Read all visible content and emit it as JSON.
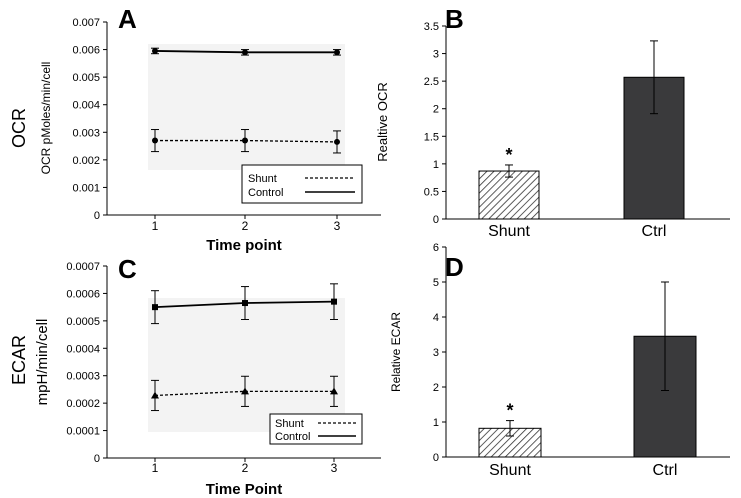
{
  "row_labels": [
    "OCR",
    "ECAR"
  ],
  "chart_data": [
    {
      "panel": "A",
      "type": "line",
      "xlabel": "Time point",
      "ylabel": "OCR pMoles/min/cell",
      "x": [
        1,
        2,
        3
      ],
      "ylim": [
        0,
        0.007
      ],
      "yticks": [
        "0",
        "0.001",
        "0.002",
        "0.003",
        "0.004",
        "0.005",
        "0.006",
        "0.007"
      ],
      "legend_position": "bottom-right",
      "series": [
        {
          "name": "Shunt",
          "style": "dashed",
          "values": [
            0.0027,
            0.0027,
            0.00265
          ],
          "errors": [
            0.0004,
            0.0004,
            0.0004
          ]
        },
        {
          "name": "Control",
          "style": "solid",
          "values": [
            0.00595,
            0.0059,
            0.0059
          ],
          "errors": [
            0.0001,
            0.0001,
            0.0001
          ]
        }
      ]
    },
    {
      "panel": "B",
      "type": "bar",
      "xlabel": "",
      "ylabel": "Realtive OCR",
      "categories": [
        "Shunt",
        "Ctrl"
      ],
      "values": [
        0.87,
        2.57
      ],
      "errors": [
        0.11,
        0.66
      ],
      "ylim": [
        0,
        3.5
      ],
      "yticks": [
        "0",
        "0.5",
        "1",
        "1.5",
        "2",
        "2.5",
        "3",
        "3.5"
      ],
      "significance": [
        "*",
        ""
      ],
      "bar_colors": [
        "#ffffff",
        "#3a3a3c"
      ]
    },
    {
      "panel": "C",
      "type": "line",
      "xlabel": "Time Point",
      "ylabel": "mpH/min/cell",
      "x": [
        1,
        2,
        3
      ],
      "ylim": [
        0,
        0.0007
      ],
      "yticks": [
        "0",
        "0.0001",
        "0.0002",
        "0.0003",
        "0.0004",
        "0.0005",
        "0.0006",
        "0.0007"
      ],
      "legend_position": "bottom-right",
      "series": [
        {
          "name": "Shunt",
          "style": "dashed",
          "values": [
            0.000228,
            0.000243,
            0.000243
          ],
          "errors": [
            5.5e-05,
            5.5e-05,
            5.5e-05
          ]
        },
        {
          "name": "Control",
          "style": "solid",
          "values": [
            0.00055,
            0.000565,
            0.00057
          ],
          "errors": [
            6e-05,
            6e-05,
            6.5e-05
          ]
        }
      ]
    },
    {
      "panel": "D",
      "type": "bar",
      "xlabel": "",
      "ylabel": "Relative ECAR",
      "categories": [
        "Shunt",
        "Ctrl"
      ],
      "values": [
        0.82,
        3.45
      ],
      "errors": [
        0.22,
        1.55
      ],
      "ylim": [
        0,
        6
      ],
      "yticks": [
        "0",
        "1",
        "2",
        "3",
        "4",
        "5",
        "6"
      ],
      "significance": [
        "*",
        ""
      ],
      "bar_colors": [
        "#ffffff",
        "#3a3a3c"
      ]
    }
  ]
}
